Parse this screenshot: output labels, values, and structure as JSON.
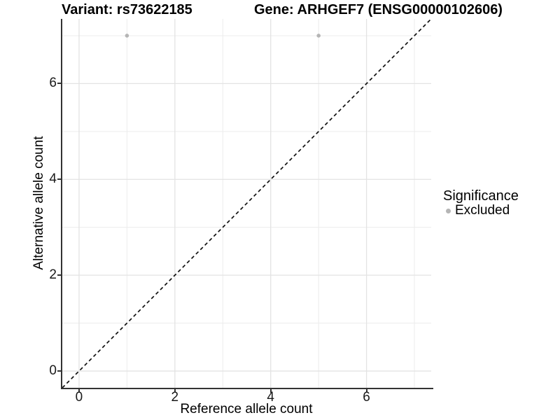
{
  "chart_data": {
    "type": "scatter",
    "title_left": "Variant: rs73622185",
    "title_right": "Gene: ARHGEF7 (ENSG00000102606)",
    "xlabel": "Reference allele count",
    "ylabel": "Alternative allele count",
    "xlim": [
      -0.35,
      7.35
    ],
    "ylim": [
      -0.35,
      7.35
    ],
    "x_ticks": [
      0,
      2,
      4,
      6
    ],
    "y_ticks": [
      0,
      2,
      4,
      6
    ],
    "x_minor_gridlines": [
      1,
      3,
      5,
      7
    ],
    "y_minor_gridlines": [
      1,
      3,
      5,
      7
    ],
    "grid": "on",
    "series": [
      {
        "name": "Excluded",
        "color": "#b5b5b5",
        "points": [
          {
            "x": 1,
            "y": 7
          },
          {
            "x": 5,
            "y": 7
          }
        ]
      }
    ],
    "reference_line": {
      "kind": "identity",
      "slope": 1,
      "intercept": 0,
      "style": "dashed",
      "color": "#111111"
    },
    "legend": {
      "title": "Significance",
      "position": "right",
      "items": [
        {
          "label": "Excluded",
          "marker": "circle",
          "color": "#b5b5b5"
        }
      ]
    }
  },
  "colors": {
    "background": "#ffffff",
    "axis_line": "#333333",
    "tick_label": "#1a1a1a",
    "grid_major": "#e3e3e3",
    "grid_minor": "#ececec",
    "point_excluded": "#b5b5b5",
    "dashed_line": "#111111",
    "text": "#000000"
  }
}
